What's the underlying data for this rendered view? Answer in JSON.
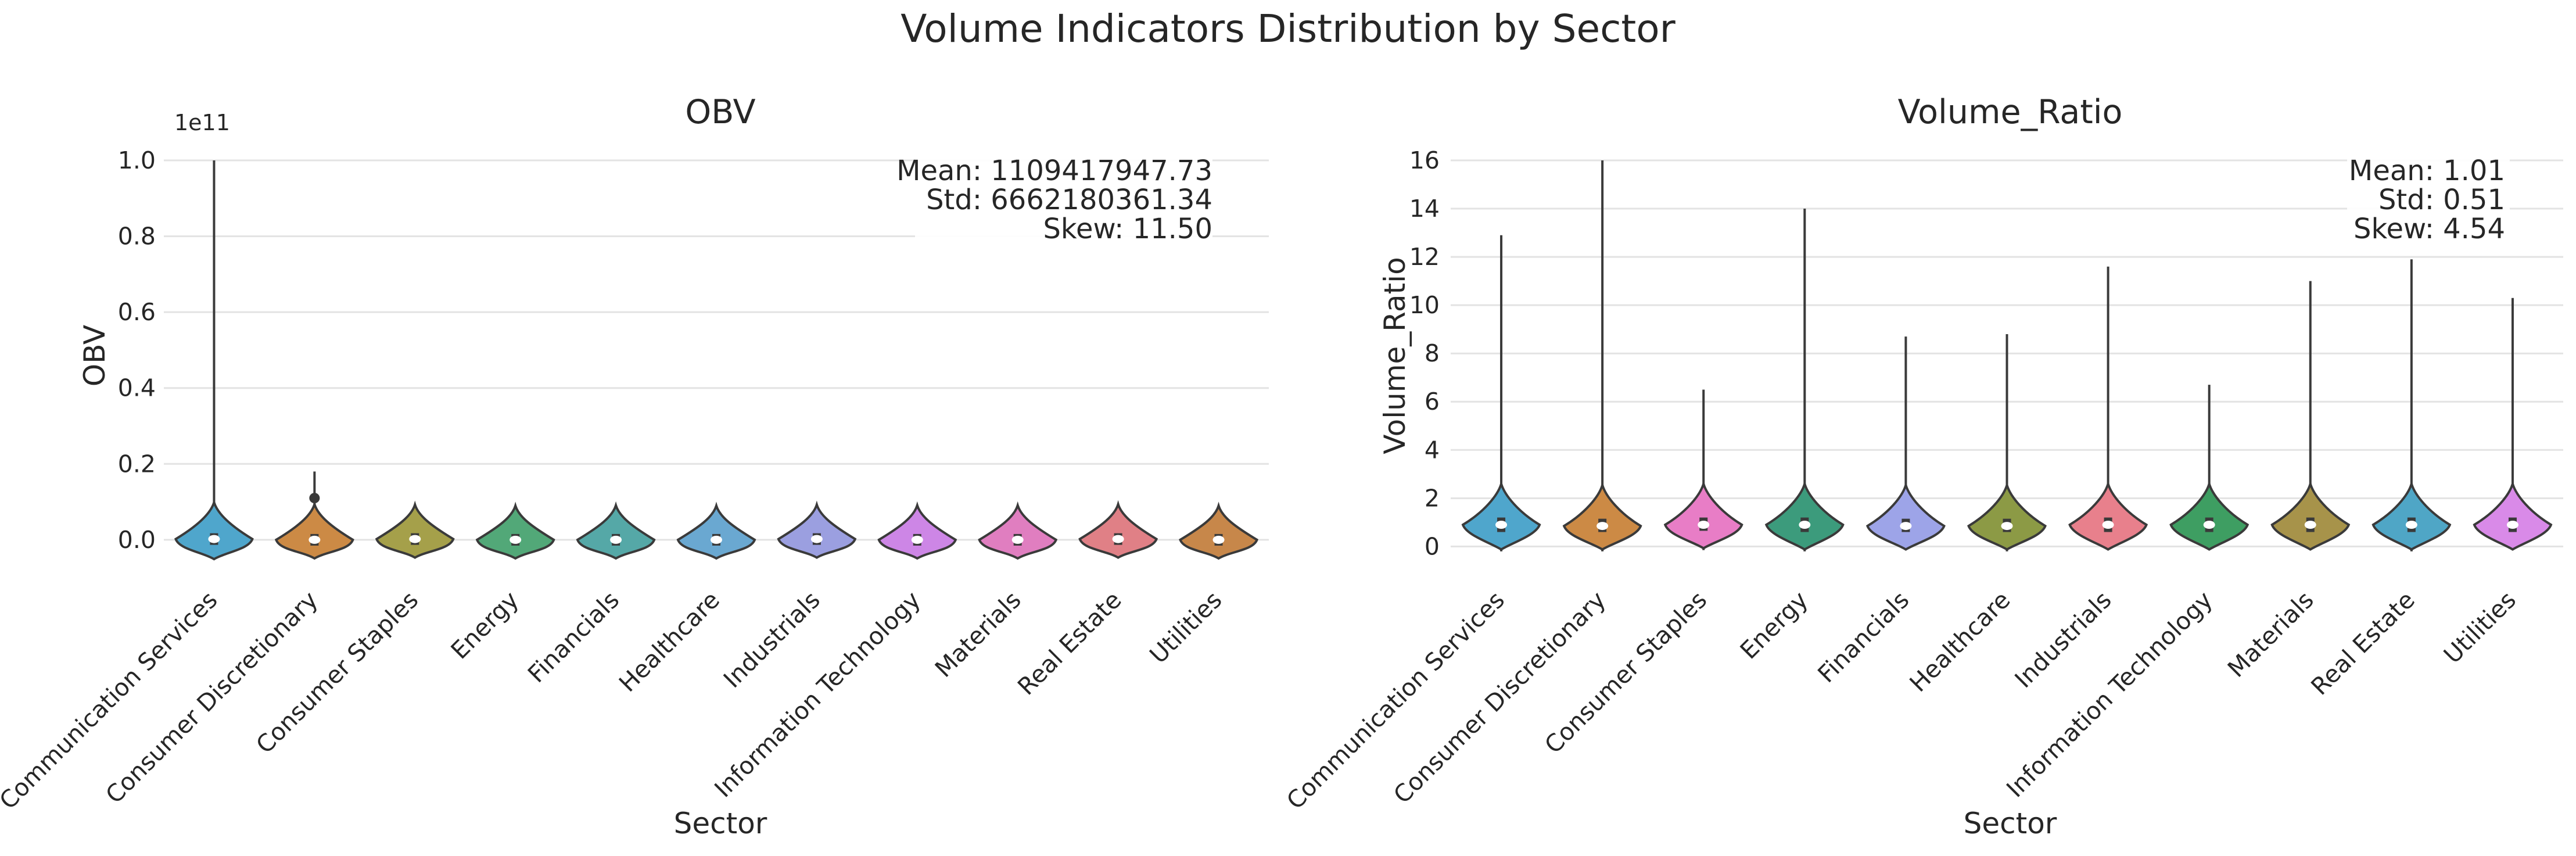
{
  "suptitle": "Volume Indicators Distribution by Sector",
  "chart_data": [
    {
      "type": "violin",
      "title": "OBV",
      "xlabel": "Sector",
      "ylabel": "OBV",
      "offset_text": "1e11",
      "ylim": [
        -0.04,
        1.0
      ],
      "yticks": [
        0.0,
        0.2,
        0.4,
        0.6,
        0.8,
        1.0
      ],
      "ytick_labels": [
        "0.0",
        "0.2",
        "0.4",
        "0.6",
        "0.8",
        "1.0"
      ],
      "grid": true,
      "stats": [
        "Mean: 1109417947.73",
        "Std: 6662180361.34",
        "Skew: 11.50"
      ],
      "categories": [
        "Communication Services",
        "Consumer Discretionary",
        "Consumer Staples",
        "Energy",
        "Financials",
        "Healthcare",
        "Industrials",
        "Information Technology",
        "Materials",
        "Real Estate",
        "Utilities"
      ],
      "colors": [
        "#4fa6cc",
        "#cc8a45",
        "#a5a04a",
        "#52a878",
        "#55a8a7",
        "#6aa8d1",
        "#9b9fe0",
        "#cd86e6",
        "#e07ec0",
        "#e08086",
        "#c7874a"
      ],
      "max": [
        1.0,
        0.18,
        0.01,
        0.004,
        0.012,
        0.004,
        0.01,
        0.01,
        0.008,
        0.012,
        0.004
      ],
      "min": [
        -0.045,
        -0.04,
        -0.003,
        -0.003,
        -0.003,
        -0.003,
        -0.003,
        -0.003,
        -0.003,
        -0.003,
        -0.003
      ],
      "median": [
        0.002,
        0.0,
        0.002,
        0.0,
        0.0,
        0.0,
        0.002,
        0.0,
        0.0,
        0.002,
        0.0
      ],
      "q1": [
        -0.005,
        -0.003,
        0.0,
        -0.001,
        -0.001,
        -0.001,
        0.0,
        -0.001,
        -0.001,
        0.0,
        -0.001
      ],
      "q3": [
        0.01,
        0.005,
        0.004,
        0.001,
        0.002,
        0.001,
        0.004,
        0.002,
        0.002,
        0.005,
        0.001
      ],
      "outliers": [
        [],
        [
          0.11
        ],
        [],
        [],
        [],
        [],
        [],
        [],
        [],
        [],
        []
      ]
    },
    {
      "type": "violin",
      "title": "Volume_Ratio",
      "xlabel": "Sector",
      "ylabel": "Volume_Ratio",
      "ylim": [
        -0.4,
        16.0
      ],
      "yticks": [
        0,
        2,
        4,
        6,
        8,
        10,
        12,
        14,
        16
      ],
      "ytick_labels": [
        "0",
        "2",
        "4",
        "6",
        "8",
        "10",
        "12",
        "14",
        "16"
      ],
      "grid": true,
      "stats": [
        "Mean: 1.01",
        "Std: 0.51",
        "Skew: 4.54"
      ],
      "categories": [
        "Communication Services",
        "Consumer Discretionary",
        "Consumer Staples",
        "Energy",
        "Financials",
        "Healthcare",
        "Industrials",
        "Information Technology",
        "Materials",
        "Real Estate",
        "Utilities"
      ],
      "colors": [
        "#4fa6cc",
        "#cc8a45",
        "#e87dc6",
        "#3c9b7c",
        "#9da4e8",
        "#8c9a45",
        "#e8808c",
        "#3e9e62",
        "#a7934a",
        "#4fa6c6",
        "#d98ae8"
      ],
      "max": [
        12.9,
        16.0,
        6.5,
        14.0,
        8.7,
        8.8,
        11.6,
        6.7,
        11.0,
        11.9,
        10.3
      ],
      "min": [
        -0.2,
        -0.2,
        -0.15,
        -0.2,
        -0.15,
        -0.2,
        -0.15,
        -0.15,
        -0.15,
        -0.2,
        -0.15
      ],
      "median": [
        0.9,
        0.85,
        0.9,
        0.9,
        0.85,
        0.85,
        0.9,
        0.9,
        0.9,
        0.9,
        0.9
      ],
      "q1": [
        0.6,
        0.6,
        0.65,
        0.6,
        0.6,
        0.6,
        0.6,
        0.6,
        0.6,
        0.6,
        0.6
      ],
      "q3": [
        1.2,
        1.15,
        1.2,
        1.2,
        1.15,
        1.15,
        1.2,
        1.2,
        1.2,
        1.2,
        1.2
      ],
      "outliers": [
        [],
        [],
        [],
        [],
        [],
        [],
        [],
        [],
        [],
        [],
        []
      ]
    }
  ]
}
